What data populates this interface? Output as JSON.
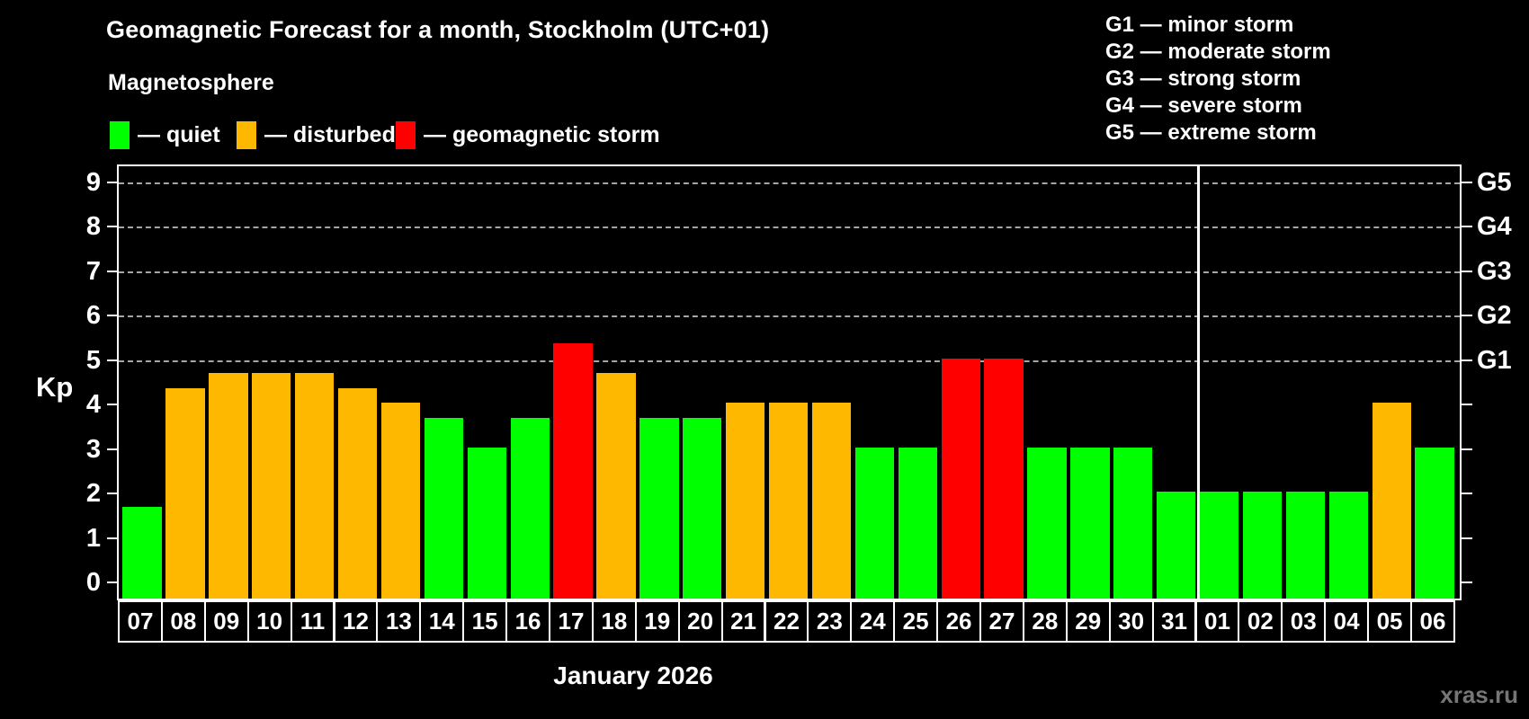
{
  "title": "Geomagnetic Forecast for a month, Stockholm (UTC+01)",
  "subtitle": "Magnetosphere",
  "legend": [
    {
      "status": "quiet",
      "label": "— quiet",
      "color": "#00FF00"
    },
    {
      "status": "disturbed",
      "label": "— disturbed",
      "color": "#FFB800"
    },
    {
      "status": "storm",
      "label": "— geomagnetic storm",
      "color": "#FF0000"
    }
  ],
  "storm_scale": [
    {
      "code": "G1",
      "label": "G1 — minor storm"
    },
    {
      "code": "G2",
      "label": "G2 — moderate storm"
    },
    {
      "code": "G3",
      "label": "G3 — strong storm"
    },
    {
      "code": "G4",
      "label": "G4 — severe storm"
    },
    {
      "code": "G5",
      "label": "G5 — extreme storm"
    }
  ],
  "axis": {
    "ylabel": "Kp",
    "yticks": [
      0,
      1,
      2,
      3,
      4,
      5,
      6,
      7,
      8,
      9
    ],
    "right_labels": [
      {
        "kp": 5,
        "label": "G1"
      },
      {
        "kp": 6,
        "label": "G2"
      },
      {
        "kp": 7,
        "label": "G3"
      },
      {
        "kp": 8,
        "label": "G4"
      },
      {
        "kp": 9,
        "label": "G5"
      }
    ],
    "xlabel": "January 2026"
  },
  "watermark": "xras.ru",
  "colors": {
    "quiet": "#00FF00",
    "disturbed": "#FFB800",
    "storm": "#FF0000",
    "gridline": "#A6A6A6",
    "axis": "#FFFFFF",
    "background": "#000000"
  },
  "chart_data": {
    "type": "bar",
    "title": "Geomagnetic Forecast for a month, Stockholm (UTC+01)",
    "xlabel": "January 2026",
    "ylabel": "Kp",
    "ylim": [
      0,
      9
    ],
    "grid_levels_kp": [
      5,
      6,
      7,
      8,
      9
    ],
    "month_separator_before_index": 25,
    "categories": [
      "07",
      "08",
      "09",
      "10",
      "11",
      "12",
      "13",
      "14",
      "15",
      "16",
      "17",
      "18",
      "19",
      "20",
      "21",
      "22",
      "23",
      "24",
      "25",
      "26",
      "27",
      "28",
      "29",
      "30",
      "31",
      "01",
      "02",
      "03",
      "04",
      "05",
      "06"
    ],
    "values": [
      1.67,
      4.33,
      4.67,
      4.67,
      4.67,
      4.33,
      4.0,
      3.67,
      3.0,
      3.67,
      5.33,
      4.67,
      3.67,
      3.67,
      4.0,
      4.0,
      4.0,
      3.0,
      3.0,
      5.0,
      5.0,
      3.0,
      3.0,
      3.0,
      2.0,
      2.0,
      2.0,
      2.0,
      2.0,
      4.0,
      3.0
    ],
    "statuses": [
      "quiet",
      "disturbed",
      "disturbed",
      "disturbed",
      "disturbed",
      "disturbed",
      "disturbed",
      "quiet",
      "quiet",
      "quiet",
      "storm",
      "disturbed",
      "quiet",
      "quiet",
      "disturbed",
      "disturbed",
      "disturbed",
      "quiet",
      "quiet",
      "storm",
      "storm",
      "quiet",
      "quiet",
      "quiet",
      "quiet",
      "quiet",
      "quiet",
      "quiet",
      "quiet",
      "disturbed",
      "quiet"
    ]
  }
}
